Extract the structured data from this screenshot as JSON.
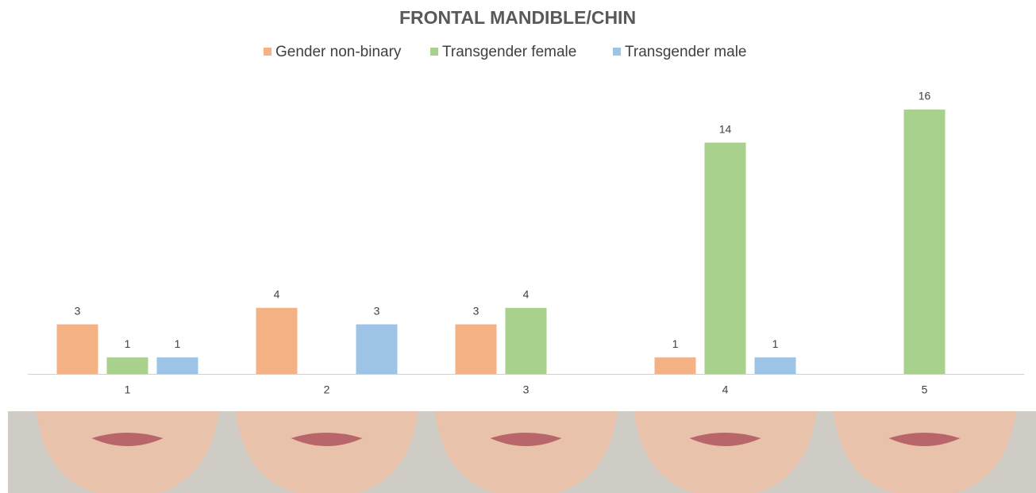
{
  "chart_data": {
    "type": "bar",
    "title": "FRONTAL MANDIBLE/CHIN",
    "categories": [
      "1",
      "2",
      "3",
      "4",
      "5"
    ],
    "series": [
      {
        "name": "Gender non-binary",
        "color": "#f4b183",
        "values": [
          3,
          4,
          3,
          1,
          null
        ]
      },
      {
        "name": "Transgender female",
        "color": "#a9d18e",
        "values": [
          1,
          null,
          4,
          14,
          16
        ]
      },
      {
        "name": "Transgender male",
        "color": "#9dc3e6",
        "values": [
          1,
          3,
          null,
          1,
          null
        ]
      }
    ],
    "legend": "top"
  }
}
